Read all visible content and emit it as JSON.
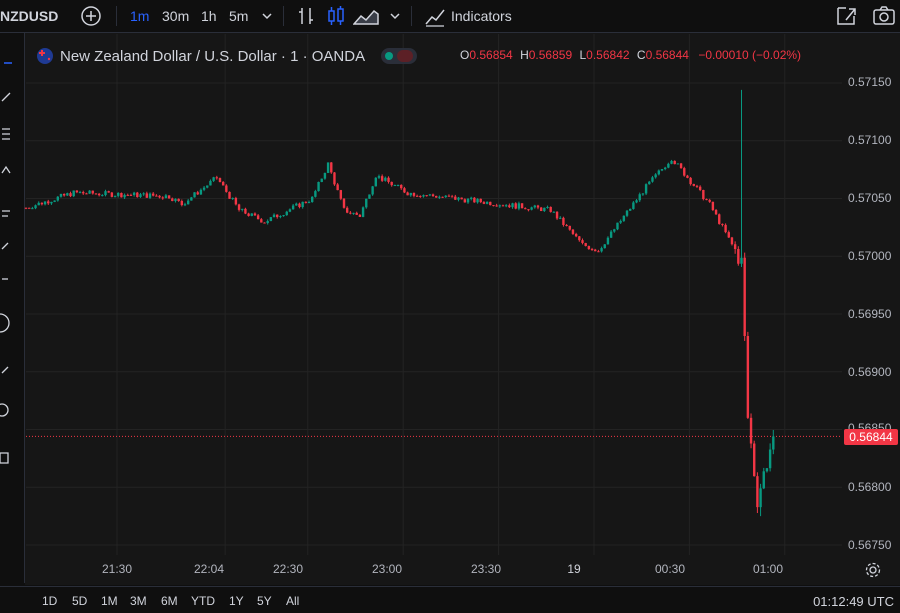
{
  "toolbar": {
    "symbol": "NZDUSD",
    "intervals": [
      "1m",
      "30m",
      "1h",
      "5m"
    ],
    "active_interval": "1m",
    "indicators_label": "Indicators"
  },
  "legend": {
    "title": "New Zealand Dollar / U.S. Dollar · 1 · OANDA",
    "o_label": "O",
    "o_value": "0.56854",
    "h_label": "H",
    "h_value": "0.56859",
    "l_label": "L",
    "l_value": "0.56842",
    "c_label": "C",
    "c_value": "0.56844",
    "change": "−0.00010 (−0.02%)"
  },
  "price_axis": [
    "0.57150",
    "0.57100",
    "0.57050",
    "0.57000",
    "0.56950",
    "0.56900",
    "0.56800",
    "0.56750"
  ],
  "price_axis_hidden": "0.56850",
  "current_price": "0.56844",
  "time_axis": [
    "21:30",
    "22:04",
    "22:30",
    "23:00",
    "23:30",
    "19",
    "00:30",
    "01:00"
  ],
  "ranges": [
    "1D",
    "5D",
    "1M",
    "3M",
    "6M",
    "YTD",
    "1Y",
    "5Y",
    "All"
  ],
  "clock": "01:12:49 UTC",
  "colors": {
    "up": "#089981",
    "down": "#f23645",
    "accent": "#2962ff",
    "price_line": "#f23645"
  },
  "chart_data": {
    "type": "candlestick",
    "title": "New Zealand Dollar / U.S. Dollar · 1 · OANDA",
    "ylim": [
      0.5673,
      0.5719
    ],
    "x_ticks": [
      "21:30",
      "22:04",
      "22:30",
      "23:00",
      "23:30",
      "19",
      "00:30",
      "01:00"
    ],
    "close_path": [
      [
        "21:15",
        0.57042
      ],
      [
        "21:30",
        0.57055
      ],
      [
        "22:00",
        0.57052
      ],
      [
        "22:04",
        0.57045
      ],
      [
        "22:15",
        0.57068
      ],
      [
        "22:22",
        0.5704
      ],
      [
        "22:30",
        0.5703
      ],
      [
        "22:45",
        0.5705
      ],
      [
        "22:50",
        0.5708
      ],
      [
        "22:55",
        0.5704
      ],
      [
        "23:00",
        0.57035
      ],
      [
        "23:05",
        0.5707
      ],
      [
        "23:15",
        0.57055
      ],
      [
        "23:30",
        0.5705
      ],
      [
        "23:45",
        0.57045
      ],
      [
        "00:00",
        0.5704
      ],
      [
        "00:10",
        0.5701
      ],
      [
        "00:15",
        0.57005
      ],
      [
        "00:30",
        0.5706
      ],
      [
        "00:38",
        0.57085
      ],
      [
        "00:50",
        0.57045
      ],
      [
        "01:00",
        0.56995
      ],
      [
        "01:02",
        0.5686
      ],
      [
        "01:05",
        0.5679
      ],
      [
        "01:10",
        0.56844
      ]
    ],
    "spike_high": 0.57144,
    "spike_low": 0.56775,
    "last": 0.56844
  }
}
